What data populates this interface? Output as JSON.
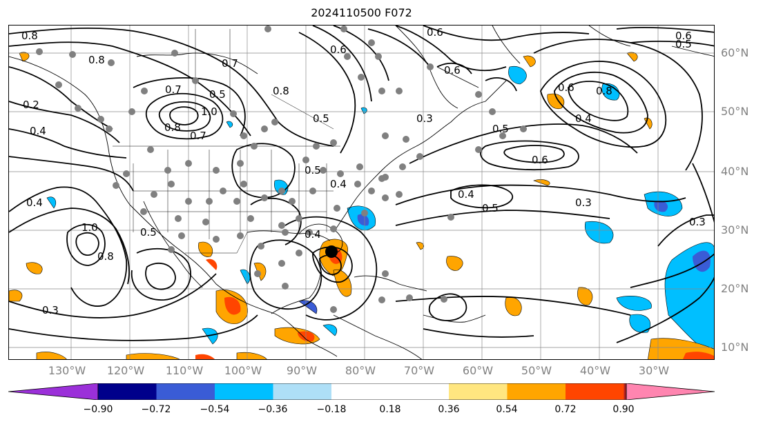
{
  "title": "2024110500 F072",
  "lat_labels": [
    "60°N",
    "50°N",
    "40°N",
    "30°N",
    "20°N",
    "10°N"
  ],
  "lon_labels": [
    "130°W",
    "120°W",
    "110°W",
    "100°W",
    "90°W",
    "80°W",
    "70°W",
    "60°W",
    "50°W",
    "40°W",
    "30°W"
  ],
  "colorbar": {
    "ticks": [
      "−0.90",
      "−0.72",
      "−0.54",
      "−0.36",
      "−0.18",
      "0.18",
      "0.36",
      "0.54",
      "0.72",
      "0.90"
    ],
    "colors": [
      "#9b30d9",
      "#00008b",
      "#3a5cd6",
      "#00bfff",
      "#aedff7",
      "#ffffff",
      "#ffe680",
      "#ffa500",
      "#ff4500",
      "#b22222",
      "#ff85b0"
    ]
  },
  "contour_labels": [
    "0.8",
    "0.8",
    "0.2",
    "0.4",
    "0.4",
    "1.0",
    "0.8",
    "0.3",
    "0.7",
    "0.5",
    "0.7",
    "1.0",
    "0.8",
    "0.7",
    "0.5",
    "0.8",
    "0.5",
    "0.6",
    "0.4",
    "0.5",
    "0.4",
    "0.3",
    "0.6",
    "0.6",
    "0.4",
    "0.5",
    "0.6",
    "0.5",
    "0.3",
    "0.3",
    "0.6",
    "0.8",
    "0.6",
    "0.5",
    "0.4"
  ],
  "storm_marker": "tropical-cyclone-center"
}
